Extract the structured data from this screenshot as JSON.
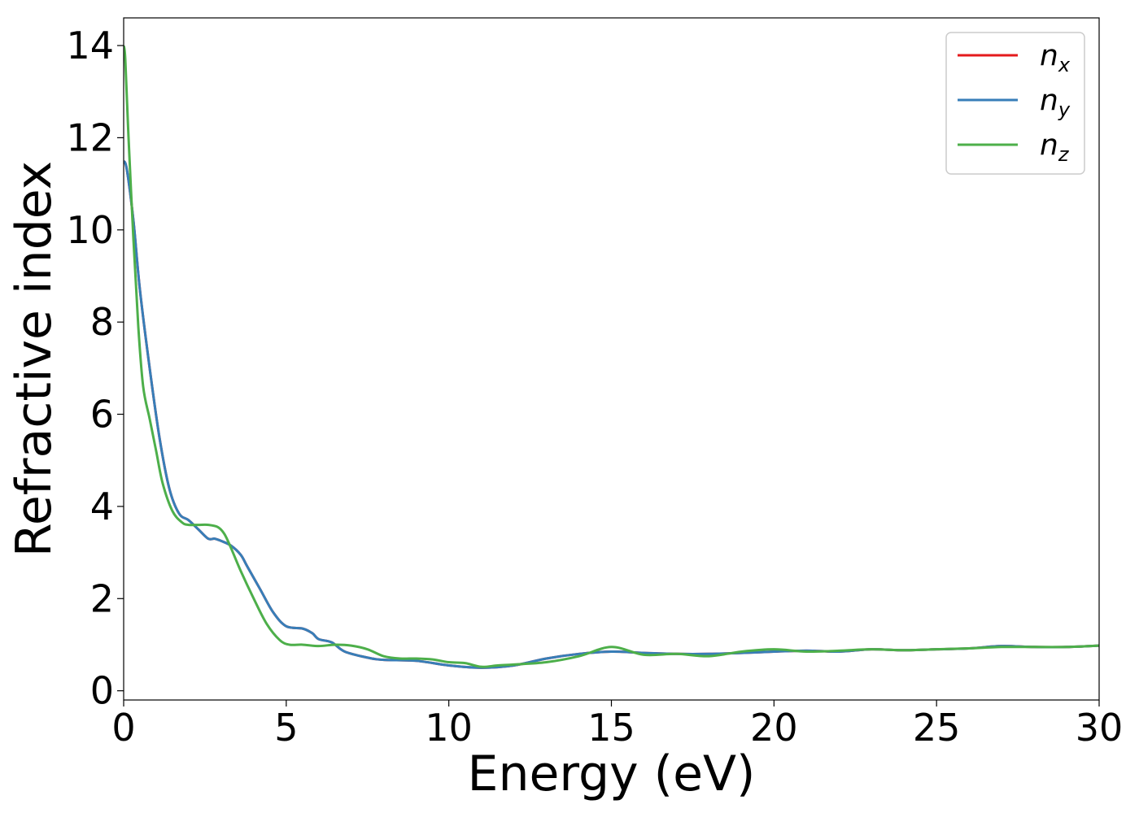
{
  "chart_data": {
    "type": "line",
    "title": "",
    "xlabel": "Energy (eV)",
    "ylabel": "Refractive index",
    "xlim": [
      0,
      30
    ],
    "ylim": [
      -0.2,
      14.6
    ],
    "xticks": [
      "0",
      "5",
      "10",
      "15",
      "20",
      "25",
      "30"
    ],
    "yticks": [
      "0",
      "2",
      "4",
      "6",
      "8",
      "10",
      "12",
      "14"
    ],
    "grid": false,
    "legend_position": "top-right",
    "series": [
      {
        "name": "n",
        "subscript": "x",
        "color": "#e41a1c",
        "x": [
          0,
          0.1,
          0.3,
          0.5,
          0.8,
          1.1,
          1.4,
          1.7,
          2.0,
          2.3,
          2.6,
          2.8,
          3.0,
          3.3,
          3.6,
          3.8,
          4.2,
          4.6,
          5.0,
          5.5,
          5.8,
          6.0,
          6.4,
          6.8,
          7.5,
          8.0,
          9.0,
          10.0,
          11.0,
          12.0,
          13.0,
          14.0,
          15.0,
          16.0,
          17.0,
          18.0,
          19.0,
          20.0,
          21.0,
          22.0,
          23.0,
          24.0,
          25.0,
          26.0,
          27.0,
          28.0,
          29.0,
          30.0
        ],
        "y": [
          11.5,
          11.3,
          10.2,
          8.7,
          7.0,
          5.5,
          4.4,
          3.85,
          3.7,
          3.5,
          3.3,
          3.3,
          3.25,
          3.15,
          2.95,
          2.7,
          2.2,
          1.7,
          1.4,
          1.35,
          1.25,
          1.12,
          1.05,
          0.85,
          0.72,
          0.67,
          0.65,
          0.55,
          0.5,
          0.55,
          0.7,
          0.8,
          0.85,
          0.82,
          0.8,
          0.8,
          0.82,
          0.85,
          0.87,
          0.85,
          0.9,
          0.88,
          0.9,
          0.92,
          0.97,
          0.95,
          0.95,
          0.98
        ]
      },
      {
        "name": "n",
        "subscript": "y",
        "color": "#377eb8",
        "x": [
          0,
          0.1,
          0.3,
          0.5,
          0.8,
          1.1,
          1.4,
          1.7,
          2.0,
          2.3,
          2.6,
          2.8,
          3.0,
          3.3,
          3.6,
          3.8,
          4.2,
          4.6,
          5.0,
          5.5,
          5.8,
          6.0,
          6.4,
          6.8,
          7.5,
          8.0,
          9.0,
          10.0,
          11.0,
          12.0,
          13.0,
          14.0,
          15.0,
          16.0,
          17.0,
          18.0,
          19.0,
          20.0,
          21.0,
          22.0,
          23.0,
          24.0,
          25.0,
          26.0,
          27.0,
          28.0,
          29.0,
          30.0
        ],
        "y": [
          11.5,
          11.3,
          10.2,
          8.7,
          7.0,
          5.5,
          4.4,
          3.85,
          3.7,
          3.5,
          3.3,
          3.3,
          3.25,
          3.15,
          2.95,
          2.7,
          2.2,
          1.7,
          1.4,
          1.35,
          1.25,
          1.12,
          1.05,
          0.85,
          0.72,
          0.67,
          0.65,
          0.55,
          0.5,
          0.55,
          0.7,
          0.8,
          0.85,
          0.82,
          0.8,
          0.8,
          0.82,
          0.85,
          0.87,
          0.85,
          0.9,
          0.88,
          0.9,
          0.92,
          0.97,
          0.95,
          0.95,
          0.98
        ]
      },
      {
        "name": "n",
        "subscript": "z",
        "color": "#4daf4a",
        "x": [
          0,
          0.05,
          0.15,
          0.3,
          0.45,
          0.6,
          0.8,
          1.0,
          1.2,
          1.5,
          1.8,
          2.0,
          2.3,
          2.6,
          2.9,
          3.1,
          3.3,
          3.6,
          4.0,
          4.4,
          4.8,
          5.1,
          5.5,
          6.0,
          6.5,
          7.0,
          7.5,
          8.0,
          8.5,
          9.0,
          9.5,
          10.0,
          10.5,
          11.0,
          11.5,
          12.0,
          13.0,
          14.0,
          15.0,
          16.0,
          17.0,
          18.0,
          19.0,
          20.0,
          21.0,
          22.0,
          23.0,
          24.0,
          25.0,
          26.0,
          27.0,
          28.0,
          29.0,
          30.0
        ],
        "y": [
          14.0,
          13.7,
          12.0,
          9.8,
          7.9,
          6.6,
          5.9,
          5.2,
          4.5,
          3.9,
          3.65,
          3.6,
          3.6,
          3.6,
          3.55,
          3.4,
          3.1,
          2.6,
          2.0,
          1.45,
          1.1,
          1.0,
          1.0,
          0.97,
          1.0,
          0.98,
          0.9,
          0.75,
          0.7,
          0.7,
          0.68,
          0.62,
          0.6,
          0.52,
          0.55,
          0.57,
          0.62,
          0.75,
          0.95,
          0.78,
          0.8,
          0.75,
          0.85,
          0.9,
          0.85,
          0.87,
          0.9,
          0.88,
          0.9,
          0.92,
          0.95,
          0.95,
          0.95,
          0.98
        ]
      }
    ]
  }
}
